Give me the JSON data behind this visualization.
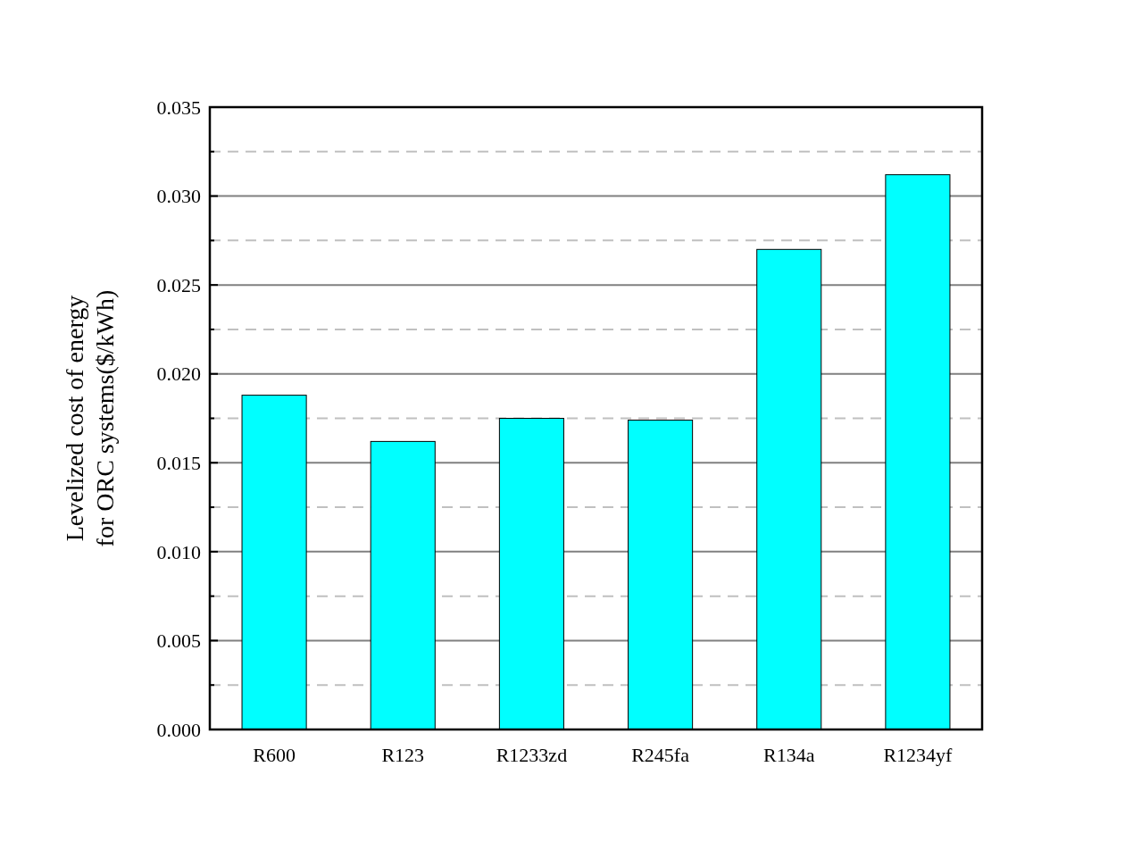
{
  "chart_data": {
    "type": "bar",
    "ylabel": "Levelized cost of energy\nfor ORC systems($/kWh)",
    "categories": [
      "R600",
      "R123",
      "R1233zd",
      "R245fa",
      "R134a",
      "R1234yf"
    ],
    "values": [
      0.0188,
      0.0162,
      0.0175,
      0.0174,
      0.027,
      0.0312
    ],
    "color": "#00ffff",
    "ylim": [
      0,
      0.035
    ],
    "yticks": [
      {
        "value": 0,
        "label": "0.000"
      },
      {
        "value": 0.0025,
        "label": null
      },
      {
        "value": 0.005,
        "label": "0.005"
      },
      {
        "value": 0.0075,
        "label": null
      },
      {
        "value": 0.01,
        "label": "0.010"
      },
      {
        "value": 0.0125,
        "label": null
      },
      {
        "value": 0.015,
        "label": "0.015"
      },
      {
        "value": 0.0175,
        "label": null
      },
      {
        "value": 0.02,
        "label": "0.020"
      },
      {
        "value": 0.0225,
        "label": null
      },
      {
        "value": 0.025,
        "label": "0.025"
      },
      {
        "value": 0.0275,
        "label": null
      },
      {
        "value": 0.03,
        "label": "0.030"
      },
      {
        "value": 0.0325,
        "label": null
      },
      {
        "value": 0.035,
        "label": "0.035"
      }
    ],
    "grid": "y"
  }
}
